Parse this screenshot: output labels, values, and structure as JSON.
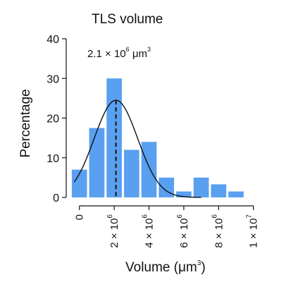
{
  "chart_data": {
    "type": "bar",
    "title": "TLS volume",
    "ylabel": "Percentage",
    "xlabel": {
      "main": "Volume (μm",
      "sup": "3",
      "close": ")"
    },
    "ylim": [
      0,
      40
    ],
    "yticks": [
      "0",
      "10",
      "20",
      "30",
      "40"
    ],
    "xlim": [
      -1000000,
      10500000
    ],
    "xticks": [
      {
        "value": 0,
        "base": "0",
        "exp": ""
      },
      {
        "value": 2000000,
        "base": "2 × 10",
        "exp": "6"
      },
      {
        "value": 4000000,
        "base": "4 × 10",
        "exp": "6"
      },
      {
        "value": 6000000,
        "base": "6 × 10",
        "exp": "6"
      },
      {
        "value": 8000000,
        "base": "8 × 10",
        "exp": "6"
      },
      {
        "value": 10000000,
        "base": "1 × 10",
        "exp": "7"
      }
    ],
    "bin_width": 1000000,
    "bins": [
      {
        "center": 0,
        "value": 7
      },
      {
        "center": 1000000,
        "value": 17.5
      },
      {
        "center": 2000000,
        "value": 30
      },
      {
        "center": 3000000,
        "value": 12
      },
      {
        "center": 4000000,
        "value": 14
      },
      {
        "center": 5000000,
        "value": 5
      },
      {
        "center": 6000000,
        "value": 1.5
      },
      {
        "center": 7000000,
        "value": 5
      },
      {
        "center": 8000000,
        "value": 3.3
      },
      {
        "center": 9000000,
        "value": 1.5
      }
    ],
    "fit_curve": {
      "mean": 2100000,
      "sd": 1250000,
      "peak": 24.5,
      "color": "#111111"
    },
    "median_line": {
      "x": 2100000,
      "style": "dashed",
      "color": "#111111"
    },
    "annotation": {
      "base": "2.1 × 10",
      "exp": "6",
      "unit": " μm",
      "unit_exp": "3",
      "color": "#a43bbf"
    },
    "bar_color": "#5aa0f0",
    "grid": false
  }
}
